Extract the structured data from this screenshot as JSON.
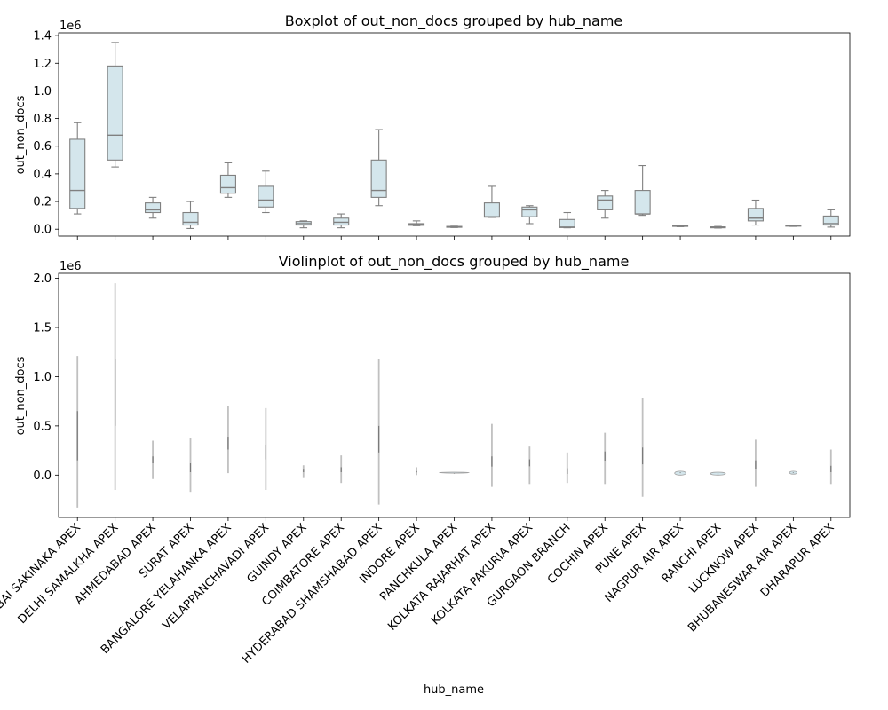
{
  "chart_data": [
    {
      "type": "boxplot",
      "title": "Boxplot of out_non_docs grouped by hub_name",
      "ylabel": "out_non_docs",
      "offset_label": "1e6",
      "ylim": [
        -0.05,
        1.42
      ],
      "yticks": [
        "0.0",
        "0.2",
        "0.4",
        "0.6",
        "0.8",
        "1.0",
        "1.2",
        "1.4"
      ],
      "ytick_values": [
        0,
        0.2,
        0.4,
        0.6,
        0.8,
        1.0,
        1.2,
        1.4
      ],
      "box_color": "#d4e6ec",
      "line_color": "#808080",
      "boxes": [
        {
          "min": 0.11,
          "q1": 0.15,
          "median": 0.28,
          "q3": 0.65,
          "max": 0.77
        },
        {
          "min": 0.45,
          "q1": 0.5,
          "median": 0.68,
          "q3": 1.18,
          "max": 1.35
        },
        {
          "min": 0.08,
          "q1": 0.12,
          "median": 0.14,
          "q3": 0.19,
          "max": 0.23
        },
        {
          "min": 0.005,
          "q1": 0.03,
          "median": 0.05,
          "q3": 0.12,
          "max": 0.2
        },
        {
          "min": 0.23,
          "q1": 0.26,
          "median": 0.3,
          "q3": 0.39,
          "max": 0.48
        },
        {
          "min": 0.12,
          "q1": 0.16,
          "median": 0.21,
          "q3": 0.31,
          "max": 0.42
        },
        {
          "min": 0.01,
          "q1": 0.03,
          "median": 0.04,
          "q3": 0.055,
          "max": 0.06
        },
        {
          "min": 0.01,
          "q1": 0.03,
          "median": 0.05,
          "q3": 0.08,
          "max": 0.11
        },
        {
          "min": 0.17,
          "q1": 0.23,
          "median": 0.28,
          "q3": 0.5,
          "max": 0.72
        },
        {
          "min": 0.025,
          "q1": 0.028,
          "median": 0.032,
          "q3": 0.04,
          "max": 0.06
        },
        {
          "min": 0.012,
          "q1": 0.015,
          "median": 0.017,
          "q3": 0.02,
          "max": 0.022
        },
        {
          "min": 0.085,
          "q1": 0.087,
          "median": 0.09,
          "q3": 0.19,
          "max": 0.31
        },
        {
          "min": 0.04,
          "q1": 0.09,
          "median": 0.14,
          "q3": 0.16,
          "max": 0.17
        },
        {
          "min": 0.01,
          "q1": 0.012,
          "median": 0.015,
          "q3": 0.07,
          "max": 0.12
        },
        {
          "min": 0.08,
          "q1": 0.14,
          "median": 0.21,
          "q3": 0.24,
          "max": 0.28
        },
        {
          "min": 0.1,
          "q1": 0.11,
          "median": 0.11,
          "q3": 0.28,
          "max": 0.46
        },
        {
          "min": 0.018,
          "q1": 0.02,
          "median": 0.025,
          "q3": 0.028,
          "max": 0.03
        },
        {
          "min": 0.008,
          "q1": 0.01,
          "median": 0.013,
          "q3": 0.017,
          "max": 0.02
        },
        {
          "min": 0.03,
          "q1": 0.06,
          "median": 0.08,
          "q3": 0.15,
          "max": 0.21
        },
        {
          "min": 0.02,
          "q1": 0.022,
          "median": 0.025,
          "q3": 0.028,
          "max": 0.03
        },
        {
          "min": 0.015,
          "q1": 0.03,
          "median": 0.04,
          "q3": 0.095,
          "max": 0.14
        }
      ]
    },
    {
      "type": "violin",
      "title": "Violinplot of out_non_docs grouped by hub_name",
      "ylabel": "out_non_docs",
      "xlabel": "hub_name",
      "offset_label": "1e6",
      "ylim": [
        -0.43,
        2.05
      ],
      "yticks": [
        "0.0",
        "0.5",
        "1.0",
        "1.5",
        "2.0"
      ],
      "ytick_values": [
        0,
        0.5,
        1.0,
        1.5,
        2.0
      ],
      "categories": [
        "MUMBAI SAKINAKA APEX",
        "DELHI SAMALKHA APEX",
        "AHMEDABAD APEX",
        "SURAT APEX",
        "BANGALORE YELAHANKA APEX",
        "VELAPPANCHAVADI APEX",
        "GUINDY APEX",
        "COIMBATORE APEX",
        "HYDERABAD SHAMSHABAD APEX",
        "INDORE APEX",
        "PANCHKULA APEX",
        "KOLKATA RAJARHAT APEX",
        "KOLKATA PAKURIA APEX",
        "GURGAON BRANCH",
        "COCHIN APEX",
        "PUNE APEX",
        "NAGPUR AIR APEX",
        "RANCHI APEX",
        "LUCKNOW APEX",
        "BHUBANESWAR AIR APEX",
        "DHARAPUR APEX"
      ],
      "violins": [
        {
          "low": -0.33,
          "high": 1.21,
          "width": 0.01
        },
        {
          "low": -0.15,
          "high": 1.95,
          "width": 0.01
        },
        {
          "low": -0.04,
          "high": 0.35,
          "width": 0.02
        },
        {
          "low": -0.17,
          "high": 0.38,
          "width": 0.01
        },
        {
          "low": 0.02,
          "high": 0.7,
          "width": 0.01
        },
        {
          "low": -0.15,
          "high": 0.68,
          "width": 0.01
        },
        {
          "low": -0.03,
          "high": 0.1,
          "width": 0.06
        },
        {
          "low": -0.08,
          "high": 0.2,
          "width": 0.02
        },
        {
          "low": -0.3,
          "high": 1.18,
          "width": 0.01
        },
        {
          "low": 0.0,
          "high": 0.08,
          "width": 0.08
        },
        {
          "low": 0.02,
          "high": 0.03,
          "width": 0.8
        },
        {
          "low": -0.12,
          "high": 0.52,
          "width": 0.01
        },
        {
          "low": -0.09,
          "high": 0.29,
          "width": 0.02
        },
        {
          "low": -0.08,
          "high": 0.23,
          "width": 0.02
        },
        {
          "low": -0.09,
          "high": 0.43,
          "width": 0.02
        },
        {
          "low": -0.22,
          "high": 0.78,
          "width": 0.01
        },
        {
          "low": 0.0,
          "high": 0.04,
          "width": 0.3
        },
        {
          "low": 0.0,
          "high": 0.03,
          "width": 0.4
        },
        {
          "low": -0.12,
          "high": 0.36,
          "width": 0.02
        },
        {
          "low": 0.01,
          "high": 0.04,
          "width": 0.2
        },
        {
          "low": -0.09,
          "high": 0.26,
          "width": 0.02
        }
      ]
    }
  ]
}
